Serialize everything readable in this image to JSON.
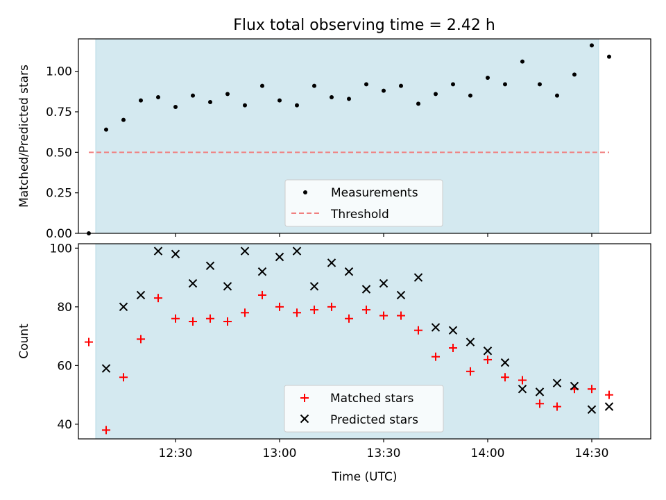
{
  "chart_data": {
    "type": "scatter",
    "title": "Flux total observing time = 2.42 h",
    "xlabel": "Time (UTC)",
    "x_ticks": [
      "12:30",
      "13:00",
      "13:30",
      "14:00",
      "14:30"
    ],
    "x_tick_values": [
      750,
      780,
      810,
      840,
      870
    ],
    "xlim": [
      722,
      887
    ],
    "shaded_span": [
      727,
      872
    ],
    "shade_color": "#d4e9f0",
    "x_times": [
      725,
      730,
      735,
      740,
      745,
      750,
      755,
      760,
      765,
      770,
      775,
      780,
      785,
      790,
      795,
      800,
      805,
      810,
      815,
      820,
      825,
      830,
      835,
      840,
      845,
      850,
      855,
      860,
      865,
      870,
      875
    ],
    "panels": [
      {
        "ylabel": "Matched/Predicted stars",
        "ylim": [
          0,
          1.2
        ],
        "y_ticks": [
          "0.00",
          "0.25",
          "0.50",
          "0.75",
          "1.00"
        ],
        "y_tick_values": [
          0,
          0.25,
          0.5,
          0.75,
          1.0
        ],
        "series": [
          {
            "name": "Measurements",
            "marker": "dot",
            "color": "#000000",
            "values": [
              0.0,
              0.64,
              0.7,
              0.82,
              0.84,
              0.78,
              0.85,
              0.81,
              0.86,
              0.79,
              0.91,
              0.82,
              0.79,
              0.91,
              0.84,
              0.83,
              0.92,
              0.88,
              0.91,
              0.8,
              0.86,
              0.92,
              0.85,
              0.96,
              0.92,
              1.06,
              0.92,
              0.85,
              0.98,
              1.16,
              1.09
            ]
          }
        ],
        "threshold": {
          "name": "Threshold",
          "value": 0.5,
          "color": "#f08080",
          "x_range": [
            725,
            875
          ]
        }
      },
      {
        "ylabel": "Count",
        "ylim": [
          35,
          101.5
        ],
        "y_ticks": [
          "40",
          "60",
          "80",
          "100"
        ],
        "y_tick_values": [
          40,
          60,
          80,
          100
        ],
        "series": [
          {
            "name": "Matched stars",
            "marker": "plus",
            "color": "#ff0000",
            "values": [
              68,
              38,
              56,
              69,
              83,
              76,
              75,
              76,
              75,
              78,
              84,
              80,
              78,
              79,
              80,
              76,
              79,
              77,
              77,
              72,
              63,
              66,
              58,
              62,
              56,
              55,
              47,
              46,
              52,
              52,
              50
            ]
          },
          {
            "name": "Predicted stars",
            "marker": "x",
            "color": "#000000",
            "values": [
              null,
              59,
              80,
              84,
              99,
              98,
              88,
              94,
              87,
              99,
              92,
              97,
              99,
              87,
              95,
              92,
              86,
              88,
              84,
              90,
              73,
              72,
              68,
              65,
              61,
              52,
              51,
              54,
              53,
              45,
              46
            ]
          }
        ]
      }
    ]
  }
}
